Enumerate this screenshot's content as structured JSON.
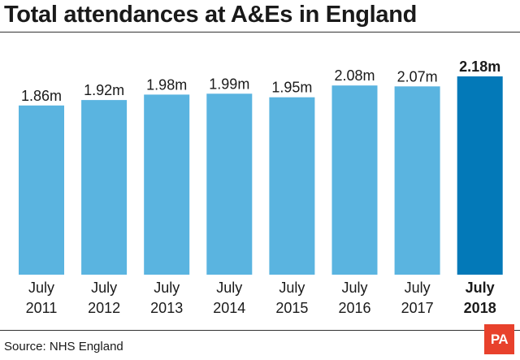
{
  "title": "Total attendances at A&Es in England",
  "source": "Source: NHS England",
  "logo": "PA",
  "colors": {
    "bar": "#5ab4e0",
    "highlight": "#0379b8",
    "logo": "#e8412c"
  },
  "chart_data": {
    "type": "bar",
    "title": "Total attendances at A&Es in England",
    "categories": [
      [
        "July",
        "2011"
      ],
      [
        "July",
        "2012"
      ],
      [
        "July",
        "2013"
      ],
      [
        "July",
        "2014"
      ],
      [
        "July",
        "2015"
      ],
      [
        "July",
        "2016"
      ],
      [
        "July",
        "2017"
      ],
      [
        "July",
        "2018"
      ]
    ],
    "values": [
      1.86,
      1.92,
      1.98,
      1.99,
      1.95,
      2.08,
      2.07,
      2.18
    ],
    "value_labels": [
      "1.86m",
      "1.92m",
      "1.98m",
      "1.99m",
      "1.95m",
      "2.08m",
      "2.07m",
      "2.18m"
    ],
    "highlight_index": 7,
    "ylim": [
      0,
      2.18
    ],
    "grid": false,
    "xlabel": "",
    "ylabel": ""
  }
}
